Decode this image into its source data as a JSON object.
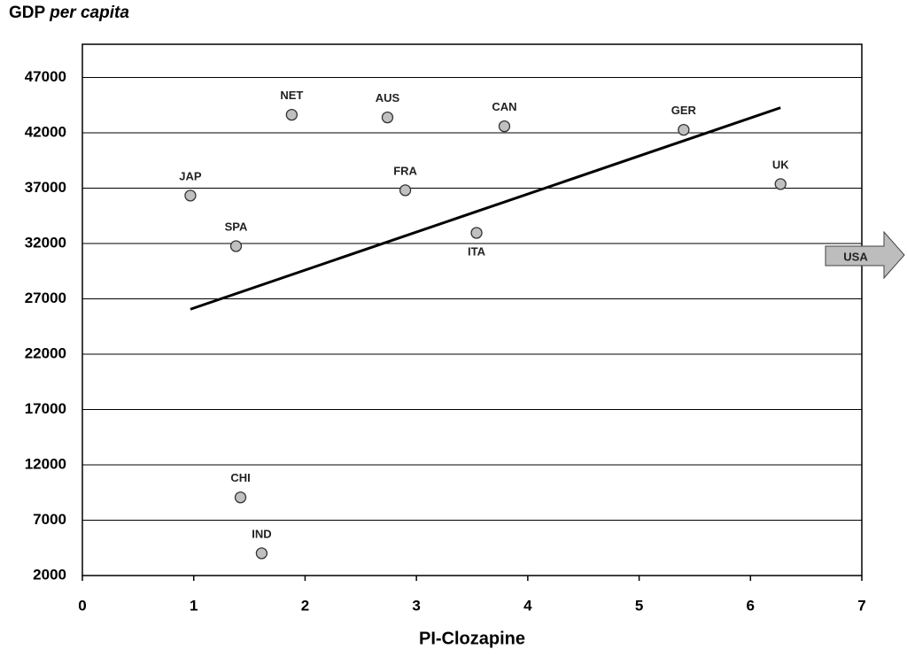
{
  "chart_data": {
    "type": "scatter",
    "title": {
      "text": "GDP",
      "emphasis": "per capita"
    },
    "x_label": "PI-Clozapine",
    "x": [
      1.88,
      2.74,
      3.79,
      5.4,
      0.97,
      2.9,
      6.27,
      1.38,
      3.54,
      1.42,
      1.61
    ],
    "values": [
      43630,
      43390,
      42590,
      42270,
      36330,
      36810,
      37370,
      31760,
      32960,
      9060,
      4010
    ],
    "point_labels": [
      "NET",
      "AUS",
      "CAN",
      "GER",
      "JAP",
      "FRA",
      "UK",
      "SPA",
      "ITA",
      "CHI",
      "IND"
    ],
    "label_position": [
      "above",
      "above",
      "above",
      "above",
      "above",
      "above",
      "above",
      "above",
      "below",
      "above",
      "above"
    ],
    "color": "#c0c0c0",
    "trendline": {
      "x": [
        0.97,
        6.27
      ],
      "y": [
        26060,
        44270
      ],
      "color": "#000000"
    },
    "annotation": {
      "text": "USA",
      "direction": "right"
    },
    "xlim": [
      0,
      7
    ],
    "ylim": [
      2000,
      50000
    ],
    "xticks": [
      0,
      1,
      2,
      3,
      4,
      5,
      6,
      7
    ],
    "yticks": [
      2000,
      7000,
      12000,
      17000,
      22000,
      27000,
      32000,
      37000,
      42000,
      47000
    ],
    "grid": true
  }
}
